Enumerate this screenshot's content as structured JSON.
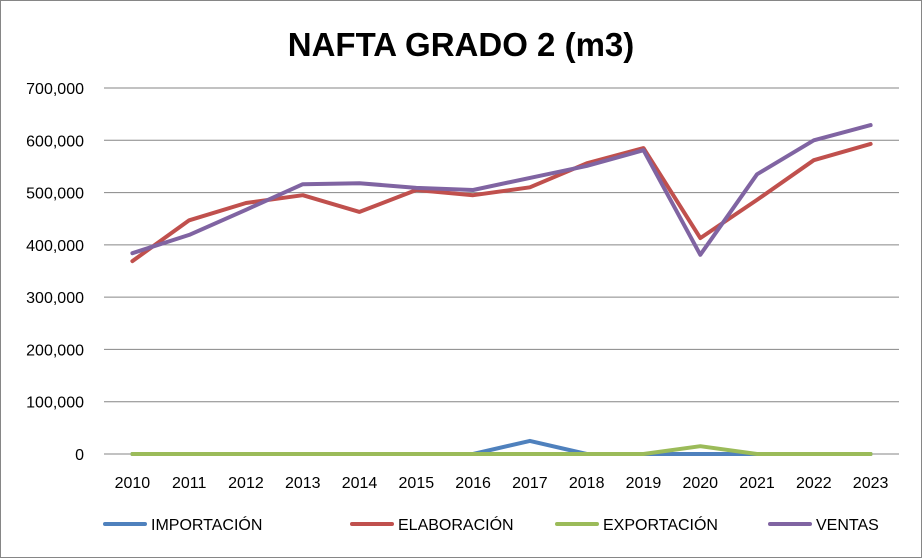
{
  "chart_data": {
    "type": "line",
    "title": "NAFTA GRADO 2 (m3)",
    "xlabel": "",
    "ylabel": "",
    "categories": [
      "2010",
      "2011",
      "2012",
      "2013",
      "2014",
      "2015",
      "2016",
      "2017",
      "2018",
      "2019",
      "2020",
      "2021",
      "2022",
      "2023"
    ],
    "ylim": [
      0,
      700000
    ],
    "yticks": [
      0,
      100000,
      200000,
      300000,
      400000,
      500000,
      600000,
      700000
    ],
    "ytick_labels": [
      "0",
      "100,000",
      "200,000",
      "300,000",
      "400,000",
      "500,000",
      "600,000",
      "700,000"
    ],
    "grid": true,
    "legend_position": "bottom",
    "series": [
      {
        "name": "IMPORTACIÓN",
        "color": "#4F81BD",
        "values": [
          0,
          0,
          0,
          0,
          0,
          0,
          0,
          25000,
          0,
          0,
          0,
          0,
          0,
          0
        ]
      },
      {
        "name": "ELABORACIÓN",
        "color": "#C0504D",
        "values": [
          369000,
          447000,
          480000,
          495000,
          463000,
          505000,
          495000,
          510000,
          556000,
          585000,
          413000,
          486000,
          562000,
          593000
        ]
      },
      {
        "name": "EXPORTACIÓN",
        "color": "#9BBB59",
        "values": [
          0,
          0,
          0,
          0,
          0,
          0,
          0,
          0,
          0,
          0,
          15000,
          0,
          0,
          0
        ]
      },
      {
        "name": "VENTAS",
        "color": "#8064A2",
        "values": [
          384000,
          419000,
          467000,
          516000,
          518000,
          509000,
          505000,
          528000,
          551000,
          581000,
          381000,
          535000,
          600000,
          629000
        ]
      }
    ]
  }
}
